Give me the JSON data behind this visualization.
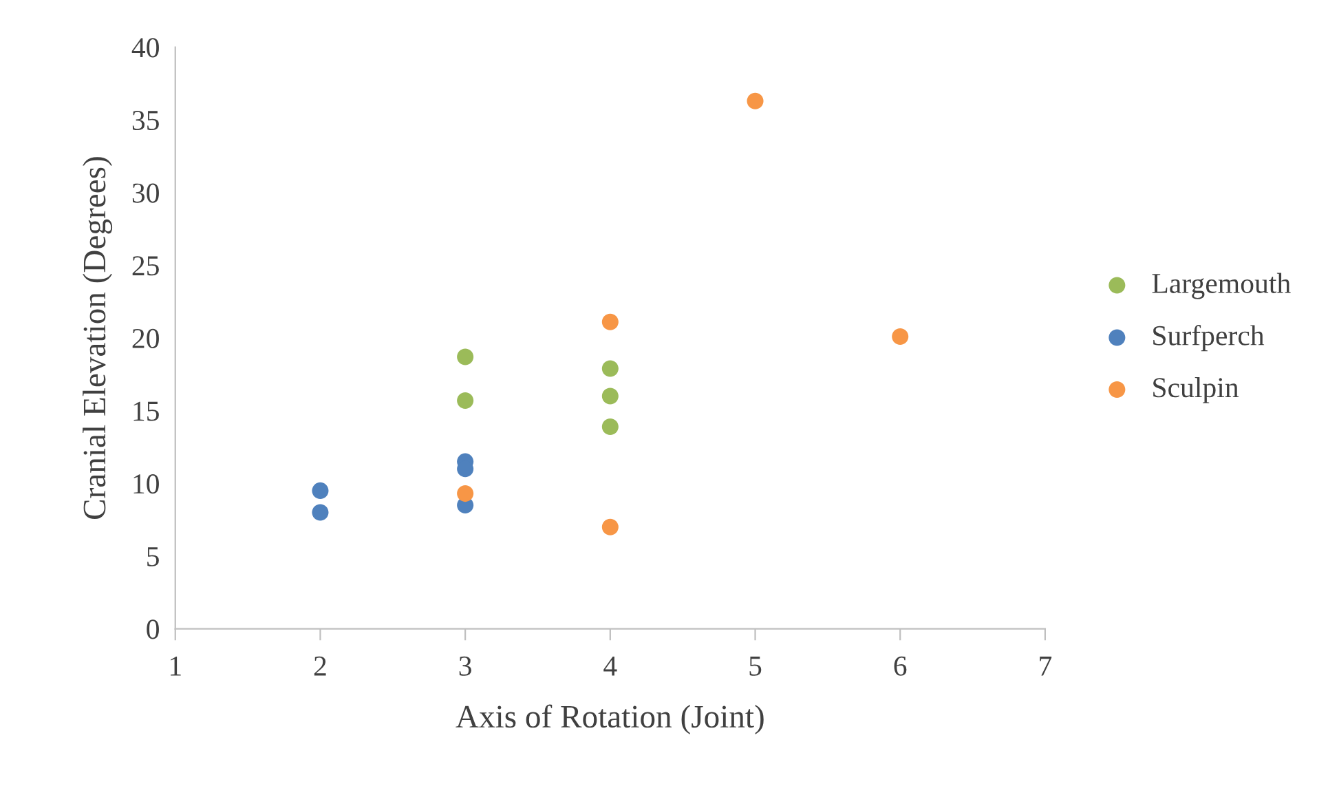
{
  "chart_data": {
    "type": "scatter",
    "xlabel": "Axis of Rotation (Joint)",
    "ylabel": "Cranial Elevation (Degrees)",
    "xlim": [
      1,
      7
    ],
    "xticks": [
      1,
      2,
      3,
      4,
      5,
      6,
      7
    ],
    "ylim": [
      0,
      40
    ],
    "yticks": [
      0,
      5,
      10,
      15,
      20,
      25,
      30,
      35,
      40
    ],
    "grid": false,
    "legend": "right",
    "marker": "circle",
    "series": [
      {
        "name": "Largemouth",
        "color": "#9bbb59",
        "x": [
          3,
          3,
          4,
          4,
          4
        ],
        "values": [
          18.7,
          15.7,
          17.9,
          16.0,
          13.9
        ]
      },
      {
        "name": "Surfperch",
        "color": "#4f81bd",
        "x": [
          2,
          2,
          3,
          3,
          3
        ],
        "values": [
          9.5,
          8.0,
          11.5,
          11.0,
          8.5
        ]
      },
      {
        "name": "Sculpin",
        "color": "#f79646",
        "x": [
          5,
          4,
          6,
          3,
          4
        ],
        "values": [
          36.3,
          21.1,
          20.1,
          9.3,
          7.0
        ]
      }
    ]
  }
}
